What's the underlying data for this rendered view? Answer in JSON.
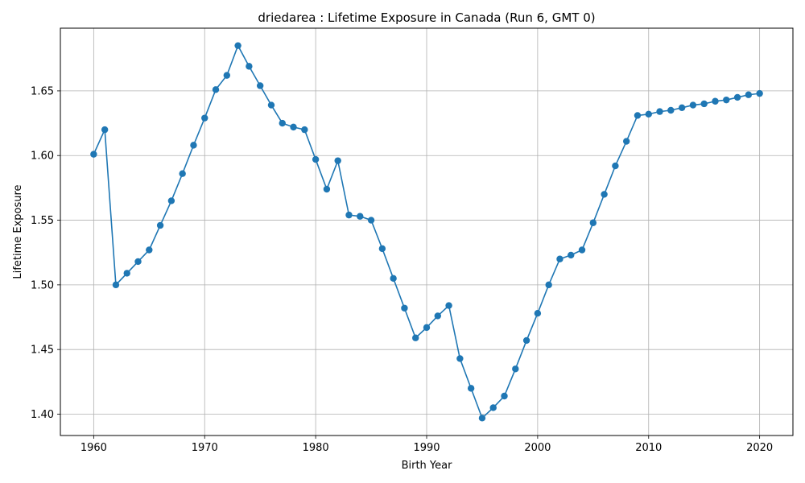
{
  "chart_data": {
    "type": "line",
    "title": "driedarea : Lifetime Exposure in Canada (Run 6, GMT 0)",
    "xlabel": "Birth Year",
    "ylabel": "Lifetime Exposure",
    "xlim": [
      1957,
      2023
    ],
    "ylim": [
      1.3835,
      1.6985
    ],
    "grid": true,
    "x_ticks": [
      1960,
      1970,
      1980,
      1990,
      2000,
      2010,
      2020
    ],
    "y_ticks": [
      1.4,
      1.45,
      1.5,
      1.55,
      1.6,
      1.65
    ],
    "x_tick_labels": [
      "1960",
      "1970",
      "1980",
      "1990",
      "2000",
      "2010",
      "2020"
    ],
    "y_tick_labels": [
      "1.40",
      "1.45",
      "1.50",
      "1.55",
      "1.60",
      "1.65"
    ],
    "series": [
      {
        "color": "#1f77b4",
        "marker": "circle",
        "x": [
          1960,
          1961,
          1962,
          1963,
          1964,
          1965,
          1966,
          1967,
          1968,
          1969,
          1970,
          1971,
          1972,
          1973,
          1974,
          1975,
          1976,
          1977,
          1978,
          1979,
          1980,
          1981,
          1982,
          1983,
          1984,
          1985,
          1986,
          1987,
          1988,
          1989,
          1990,
          1991,
          1992,
          1993,
          1994,
          1995,
          1996,
          1997,
          1998,
          1999,
          2000,
          2001,
          2002,
          2003,
          2004,
          2005,
          2006,
          2007,
          2008,
          2009,
          2010,
          2011,
          2012,
          2013,
          2014,
          2015,
          2016,
          2017,
          2018,
          2019,
          2020
        ],
        "y": [
          1.601,
          1.62,
          1.5,
          1.509,
          1.518,
          1.527,
          1.546,
          1.565,
          1.586,
          1.608,
          1.629,
          1.651,
          1.662,
          1.685,
          1.669,
          1.654,
          1.639,
          1.625,
          1.622,
          1.62,
          1.597,
          1.574,
          1.596,
          1.554,
          1.553,
          1.55,
          1.528,
          1.505,
          1.482,
          1.459,
          1.467,
          1.476,
          1.484,
          1.443,
          1.42,
          1.397,
          1.405,
          1.414,
          1.435,
          1.457,
          1.478,
          1.5,
          1.52,
          1.523,
          1.527,
          1.548,
          1.57,
          1.592,
          1.611,
          1.631,
          1.632,
          1.634,
          1.635,
          1.637,
          1.639,
          1.64,
          1.642,
          1.643,
          1.645,
          1.647,
          1.648
        ]
      }
    ]
  }
}
